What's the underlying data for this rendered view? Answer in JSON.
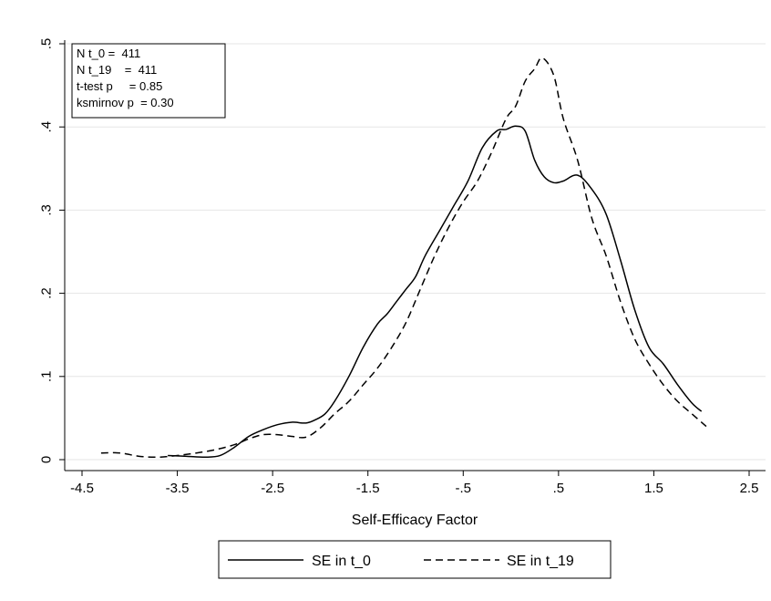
{
  "chart_data": {
    "type": "line",
    "title": "",
    "xlabel": "Self-Efficacy Factor",
    "ylabel": "",
    "xlim": [
      -4.5,
      2.5
    ],
    "ylim": [
      0,
      0.5
    ],
    "x_ticks": [
      -4.5,
      -3.5,
      -2.5,
      -1.5,
      -0.5,
      0.5,
      1.5,
      2.5
    ],
    "x_tick_labels": [
      "-4.5",
      "-3.5",
      "-2.5",
      "-1.5",
      "-.5",
      ".5",
      "1.5",
      "2.5"
    ],
    "y_ticks": [
      0,
      0.1,
      0.2,
      0.3,
      0.4,
      0.5
    ],
    "y_tick_labels": [
      "0",
      ".1",
      ".2",
      ".3",
      ".4",
      ".5"
    ],
    "grid": "horizontal",
    "legend_position": "bottom",
    "stats": [
      "N t_0 =  411",
      "N t_19    =  411",
      "t-test p     = 0.85",
      "ksmirnov p  = 0.30"
    ],
    "series": [
      {
        "name": "SE in t_0",
        "style": "solid",
        "color": "#000000",
        "x": [
          -3.6,
          -3.4,
          -3.2,
          -3.05,
          -2.9,
          -2.75,
          -2.6,
          -2.45,
          -2.3,
          -2.15,
          -2.05,
          -1.95,
          -1.85,
          -1.7,
          -1.55,
          -1.4,
          -1.3,
          -1.2,
          -1.1,
          -1.0,
          -0.9,
          -0.75,
          -0.6,
          -0.45,
          -0.3,
          -0.15,
          -0.05,
          0.05,
          0.15,
          0.25,
          0.35,
          0.45,
          0.55,
          0.7,
          0.85,
          1.0,
          1.15,
          1.3,
          1.45,
          1.6,
          1.75,
          1.9,
          2.0
        ],
        "y": [
          0.005,
          0.004,
          0.003,
          0.005,
          0.015,
          0.028,
          0.036,
          0.042,
          0.045,
          0.044,
          0.048,
          0.055,
          0.07,
          0.1,
          0.135,
          0.163,
          0.175,
          0.19,
          0.205,
          0.22,
          0.245,
          0.275,
          0.305,
          0.335,
          0.375,
          0.395,
          0.397,
          0.401,
          0.395,
          0.36,
          0.34,
          0.333,
          0.335,
          0.342,
          0.325,
          0.295,
          0.24,
          0.18,
          0.135,
          0.115,
          0.09,
          0.068,
          0.058
        ]
      },
      {
        "name": "SE in t_19",
        "style": "dashed",
        "color": "#000000",
        "x": [
          -4.3,
          -4.1,
          -3.9,
          -3.7,
          -3.5,
          -3.3,
          -3.1,
          -2.9,
          -2.75,
          -2.6,
          -2.45,
          -2.3,
          -2.15,
          -2.0,
          -1.85,
          -1.7,
          -1.55,
          -1.4,
          -1.25,
          -1.1,
          -0.95,
          -0.8,
          -0.65,
          -0.5,
          -0.35,
          -0.2,
          -0.05,
          0.05,
          0.15,
          0.25,
          0.33,
          0.45,
          0.55,
          0.7,
          0.85,
          1.0,
          1.15,
          1.3,
          1.45,
          1.6,
          1.75,
          1.9,
          2.05
        ],
        "y": [
          0.008,
          0.008,
          0.004,
          0.003,
          0.005,
          0.008,
          0.012,
          0.018,
          0.025,
          0.03,
          0.03,
          0.028,
          0.027,
          0.038,
          0.055,
          0.07,
          0.09,
          0.11,
          0.135,
          0.165,
          0.205,
          0.245,
          0.28,
          0.31,
          0.335,
          0.37,
          0.41,
          0.425,
          0.455,
          0.47,
          0.483,
          0.462,
          0.41,
          0.36,
          0.29,
          0.245,
          0.19,
          0.145,
          0.115,
          0.09,
          0.07,
          0.055,
          0.04
        ]
      }
    ]
  }
}
